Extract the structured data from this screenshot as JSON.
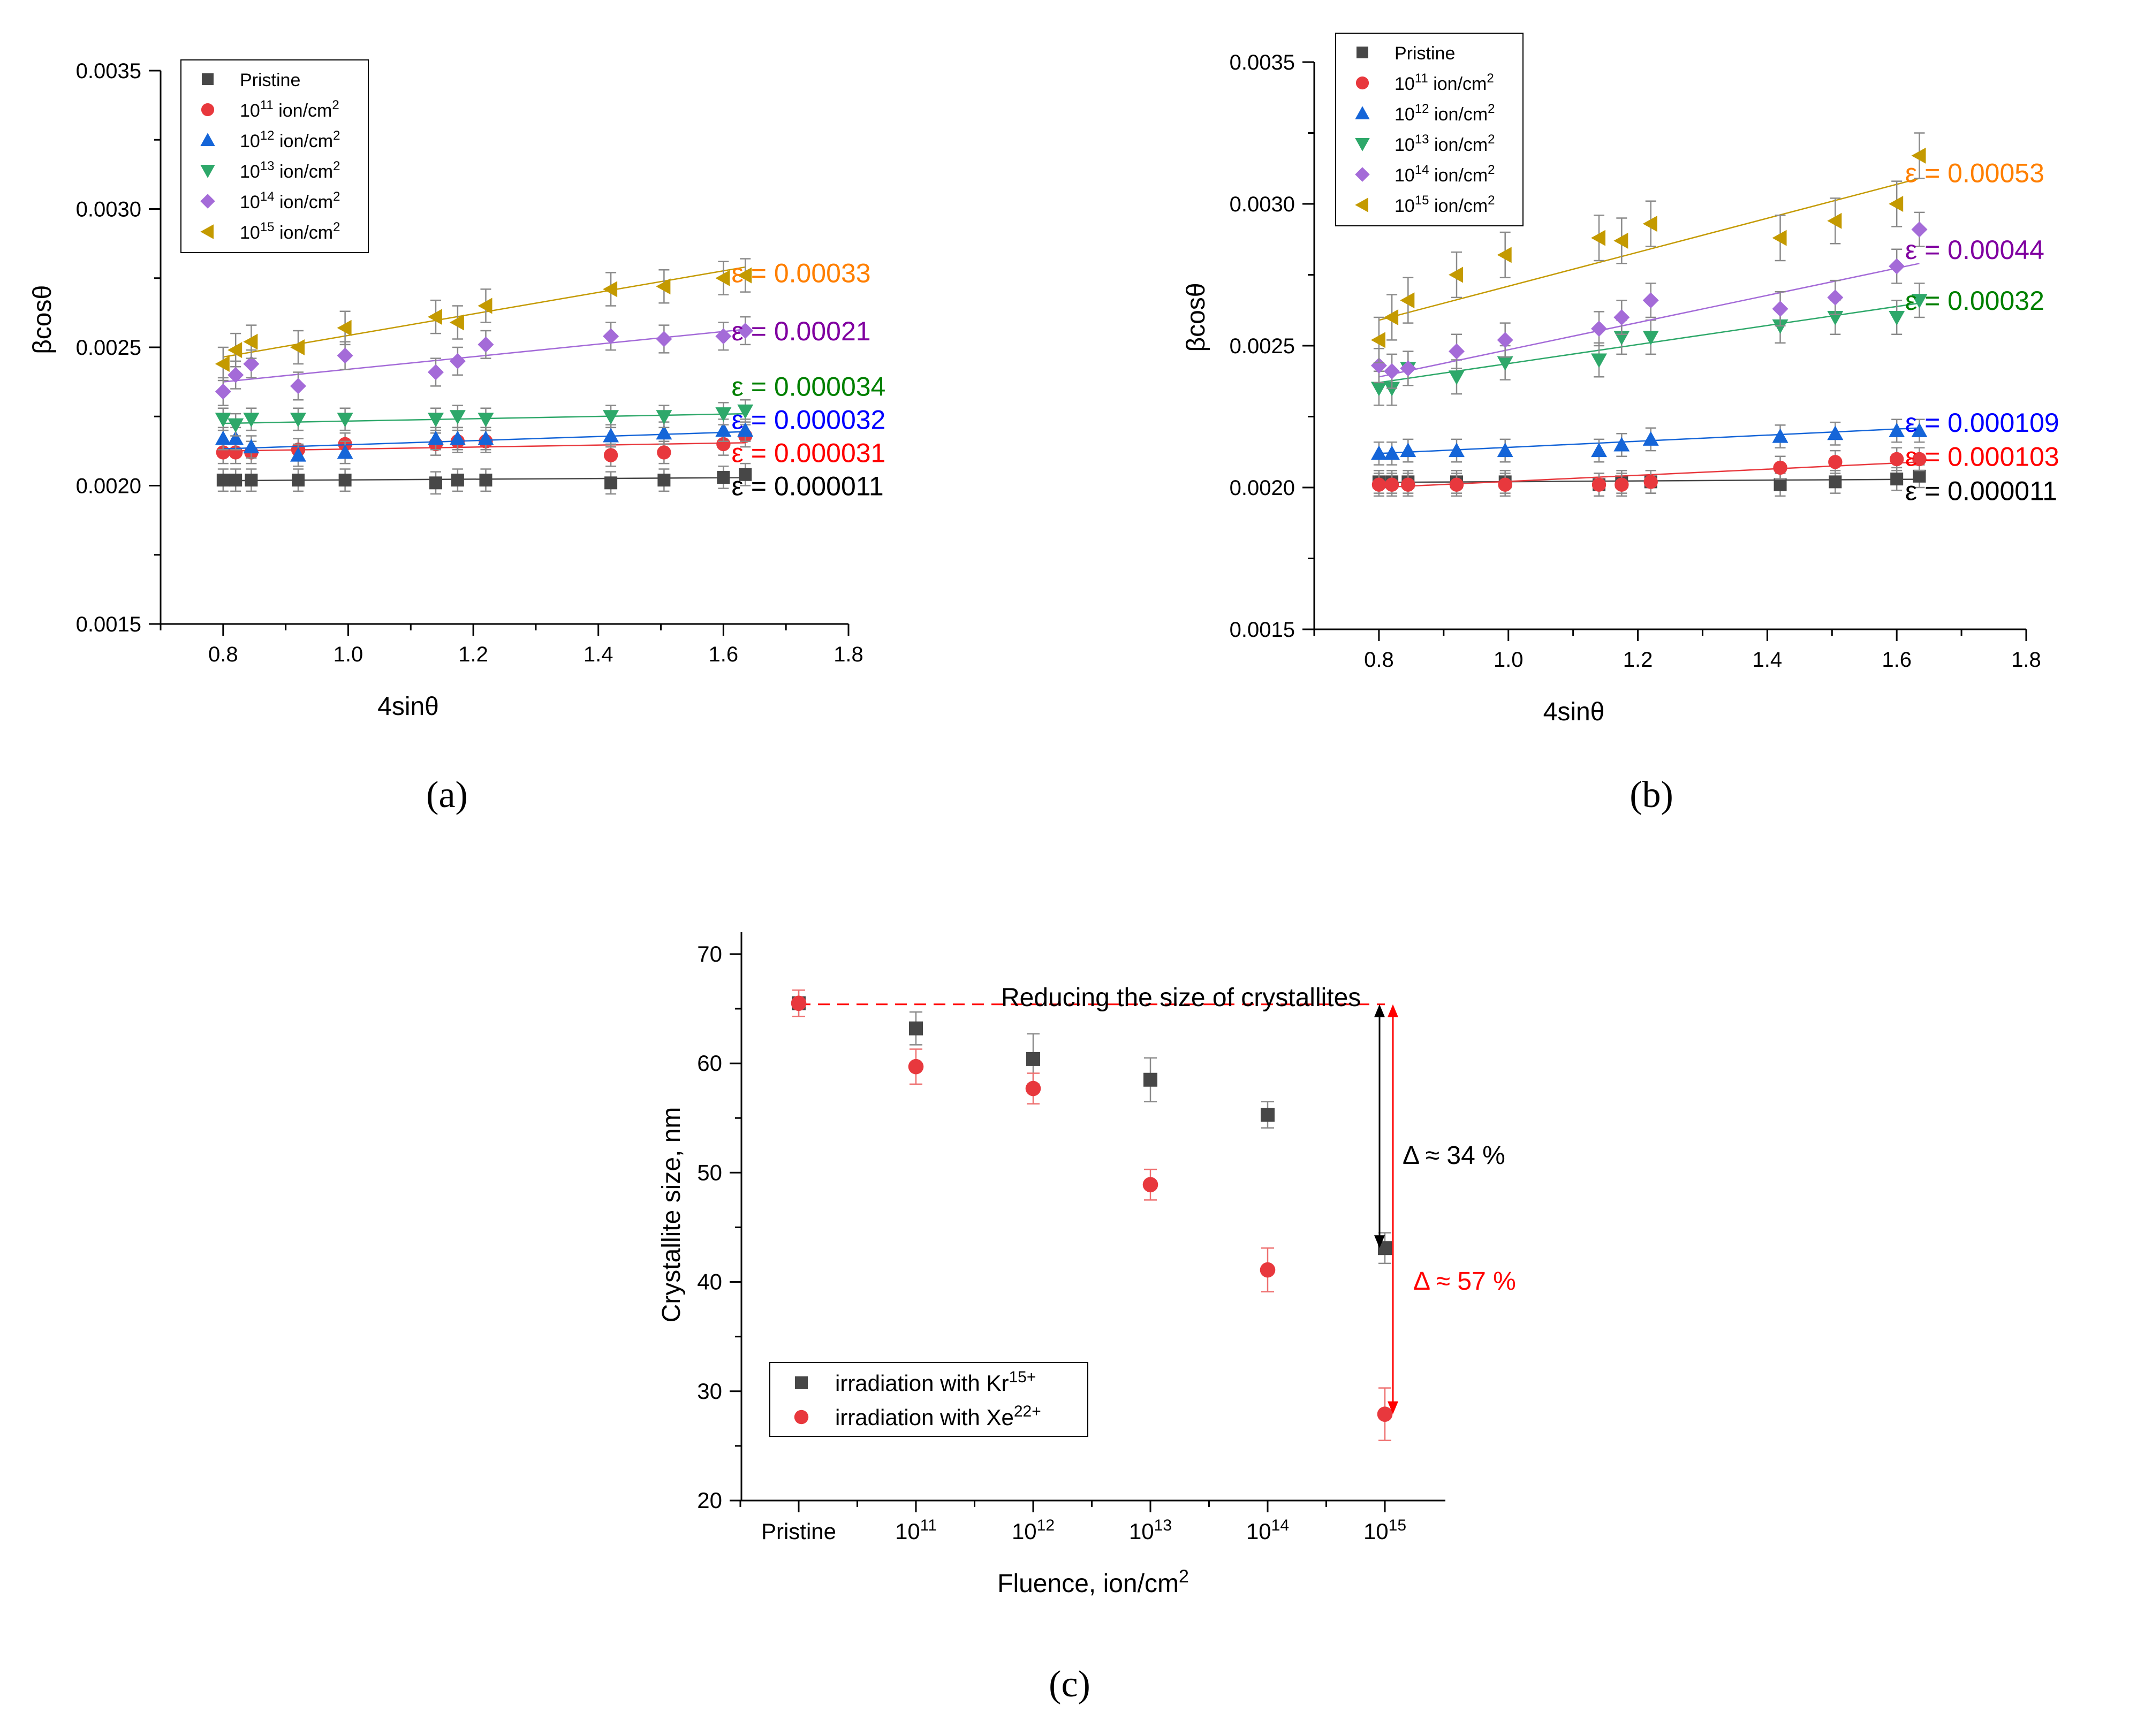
{
  "chart_data": [
    {
      "type": "scatter",
      "panel": "(a)",
      "panel_letter": "a",
      "xlabel": "4sinθ",
      "ylabel": "βcosθ",
      "xlim": [
        0.7,
        1.8
      ],
      "ylim": [
        0.0015,
        0.0035
      ],
      "xticks": [
        0.8,
        1.0,
        1.2,
        1.4,
        1.6,
        1.8
      ],
      "xtick_labels": [
        "0.8",
        "1.0",
        "1.2",
        "1.4",
        "1.6",
        "1.8"
      ],
      "yticks": [
        0.0015,
        0.002,
        0.0025,
        0.003,
        0.0035
      ],
      "ytick_labels": [
        "0.0015",
        "0.0020",
        "0.0025",
        "0.0030",
        "0.0035"
      ],
      "legend_position": "top-left",
      "x": [
        0.8,
        0.82,
        0.845,
        0.92,
        0.995,
        1.14,
        1.175,
        1.22,
        1.42,
        1.505,
        1.6,
        1.635
      ],
      "series": [
        {
          "name": "Pristine",
          "legend_base": "Pristine",
          "legend_exp": "",
          "legend_tail": "",
          "marker": "square",
          "color": "#474747",
          "values": [
            0.00202,
            0.00202,
            0.00202,
            0.00202,
            0.00202,
            0.00201,
            0.00202,
            0.00202,
            0.00201,
            0.00202,
            0.00203,
            0.00204
          ],
          "err": 4e-05,
          "fit": [
            0.002018,
            0.002029
          ],
          "strain_label": "ε = 0.000011",
          "strain_color": "#000000",
          "strain_at": 0.002
        },
        {
          "name": "10^11 ion/cm^2",
          "legend_base": "10",
          "legend_exp": "11",
          "legend_tail": " ion/cm",
          "marker": "circle",
          "color": "#e8383d",
          "values": [
            0.00212,
            0.00212,
            0.00212,
            0.00213,
            0.00215,
            0.00215,
            0.00216,
            0.00216,
            0.00211,
            0.00212,
            0.00215,
            0.00218
          ],
          "err": 4e-05,
          "fit": [
            0.002125,
            0.002155
          ],
          "strain_label": "ε = 0.000031",
          "strain_color": "#ff0000",
          "strain_at": 0.00212
        },
        {
          "name": "10^12 ion/cm^2",
          "legend_base": "10",
          "legend_exp": "12",
          "legend_tail": " ion/cm",
          "marker": "triangle-up",
          "color": "#1565d8",
          "values": [
            0.00217,
            0.00217,
            0.00214,
            0.00211,
            0.00212,
            0.00217,
            0.00217,
            0.00217,
            0.00218,
            0.00219,
            0.0022,
            0.0022
          ],
          "err": 4e-05,
          "fit": [
            0.002133,
            0.002195
          ],
          "strain_label": "ε = 0.000032",
          "strain_color": "#0000ff",
          "strain_at": 0.00224
        },
        {
          "name": "10^13 ion/cm^2",
          "legend_base": "10",
          "legend_exp": "13",
          "legend_tail": " ion/cm",
          "marker": "triangle-down",
          "color": "#2ea86a",
          "values": [
            0.00224,
            0.00222,
            0.00224,
            0.00224,
            0.00224,
            0.00224,
            0.00225,
            0.00224,
            0.00225,
            0.00225,
            0.00226,
            0.00227
          ],
          "err": 4e-05,
          "fit": [
            0.002225,
            0.00226
          ],
          "strain_label": "ε = 0.000034",
          "strain_color": "#008000",
          "strain_at": 0.00236
        },
        {
          "name": "10^14 ion/cm^2",
          "legend_base": "10",
          "legend_exp": "14",
          "legend_tail": " ion/cm",
          "marker": "diamond",
          "color": "#a46bd8",
          "values": [
            0.00234,
            0.0024,
            0.00244,
            0.00236,
            0.00247,
            0.00241,
            0.00245,
            0.00251,
            0.00254,
            0.00253,
            0.00254,
            0.00256
          ],
          "err": 5e-05,
          "fit": [
            0.002375,
            0.002565
          ],
          "strain_label": "ε = 0.00021",
          "strain_color": "#8000a0",
          "strain_at": 0.00256
        },
        {
          "name": "10^15 ion/cm^2",
          "legend_base": "10",
          "legend_exp": "15",
          "legend_tail": " ion/cm",
          "marker": "triangle-left",
          "color": "#c49a00",
          "values": [
            0.00244,
            0.00249,
            0.00252,
            0.0025,
            0.00257,
            0.00261,
            0.00259,
            0.00265,
            0.00271,
            0.00272,
            0.00275,
            0.00276
          ],
          "err": 6e-05,
          "fit": [
            0.002465,
            0.00279
          ],
          "strain_label": "ε = 0.00033",
          "strain_color": "#ff7f00",
          "strain_at": 0.00277
        }
      ]
    },
    {
      "type": "scatter",
      "panel": "(b)",
      "panel_letter": "b",
      "xlabel": "4sinθ",
      "ylabel": "βcosθ",
      "xlim": [
        0.7,
        1.8
      ],
      "ylim": [
        0.0015,
        0.0035
      ],
      "xticks": [
        0.8,
        1.0,
        1.2,
        1.4,
        1.6,
        1.8
      ],
      "xtick_labels": [
        "0.8",
        "1.0",
        "1.2",
        "1.4",
        "1.6",
        "1.8"
      ],
      "yticks": [
        0.0015,
        0.002,
        0.0025,
        0.003,
        0.0035
      ],
      "ytick_labels": [
        "0.0015",
        "0.0020",
        "0.0025",
        "0.0030",
        "0.0035"
      ],
      "legend_position": "top-left",
      "x": [
        0.8,
        0.82,
        0.845,
        0.92,
        0.995,
        1.14,
        1.175,
        1.22,
        1.42,
        1.505,
        1.6,
        1.635
      ],
      "series": [
        {
          "name": "Pristine",
          "legend_base": "Pristine",
          "legend_exp": "",
          "legend_tail": "",
          "marker": "square",
          "color": "#474747",
          "values": [
            0.00202,
            0.00202,
            0.00202,
            0.00202,
            0.00202,
            0.00201,
            0.00202,
            0.00202,
            0.00201,
            0.00202,
            0.00203,
            0.00204
          ],
          "err": 4e-05,
          "fit": [
            0.002018,
            0.002029
          ],
          "strain_label": "ε = 0.000011",
          "strain_color": "#000000",
          "strain_at": 0.00199
        },
        {
          "name": "10^11 ion/cm^2",
          "legend_base": "10",
          "legend_exp": "11",
          "legend_tail": " ion/cm",
          "marker": "circle",
          "color": "#e8383d",
          "values": [
            0.00201,
            0.00201,
            0.00201,
            0.00201,
            0.00201,
            0.00201,
            0.00201,
            0.00202,
            0.00207,
            0.00209,
            0.0021,
            0.0021
          ],
          "err": 4e-05,
          "fit": [
            0.002,
            0.00209
          ],
          "strain_label": "ε = 0.000103",
          "strain_color": "#ff0000",
          "strain_at": 0.00211
        },
        {
          "name": "10^12 ion/cm^2",
          "legend_base": "10",
          "legend_exp": "12",
          "legend_tail": " ion/cm",
          "marker": "triangle-up",
          "color": "#1565d8",
          "values": [
            0.00212,
            0.00212,
            0.00213,
            0.00213,
            0.00213,
            0.00213,
            0.00215,
            0.00217,
            0.00218,
            0.00219,
            0.0022,
            0.0022
          ],
          "err": 4e-05,
          "fit": [
            0.00212,
            0.00221
          ],
          "strain_label": "ε = 0.000109",
          "strain_color": "#0000ff",
          "strain_at": 0.00223
        },
        {
          "name": "10^13 ion/cm^2",
          "legend_base": "10",
          "legend_exp": "13",
          "legend_tail": " ion/cm",
          "marker": "triangle-down",
          "color": "#2ea86a",
          "values": [
            0.00235,
            0.00235,
            0.00242,
            0.00239,
            0.00244,
            0.00245,
            0.00253,
            0.00253,
            0.00257,
            0.0026,
            0.0026,
            0.00266
          ],
          "err": 6e-05,
          "fit": [
            0.00237,
            0.00265
          ],
          "strain_label": "ε = 0.00032",
          "strain_color": "#008000",
          "strain_at": 0.00266
        },
        {
          "name": "10^14 ion/cm^2",
          "legend_base": "10",
          "legend_exp": "14",
          "legend_tail": " ion/cm",
          "marker": "diamond",
          "color": "#a46bd8",
          "values": [
            0.00243,
            0.00241,
            0.00242,
            0.00248,
            0.00252,
            0.00256,
            0.0026,
            0.00266,
            0.00263,
            0.00267,
            0.00278,
            0.00291
          ],
          "err": 6e-05,
          "fit": [
            0.00239,
            0.00279
          ],
          "strain_label": "ε = 0.00044",
          "strain_color": "#8000a0",
          "strain_at": 0.00284
        },
        {
          "name": "10^15 ion/cm^2",
          "legend_base": "10",
          "legend_exp": "15",
          "legend_tail": " ion/cm",
          "marker": "triangle-left",
          "color": "#c49a00",
          "values": [
            0.00252,
            0.0026,
            0.00266,
            0.00275,
            0.00282,
            0.00288,
            0.00287,
            0.00293,
            0.00288,
            0.00294,
            0.003,
            0.00317
          ],
          "err": 8e-05,
          "fit": [
            0.00259,
            0.00309
          ],
          "strain_label": "ε = 0.00053",
          "strain_color": "#ff7f00",
          "strain_at": 0.00311
        }
      ]
    },
    {
      "type": "scatter",
      "panel": "(c)",
      "panel_letter": "c",
      "xlabel_base": "Fluence, ion/cm",
      "xlabel_exp": "2",
      "ylabel": "Crystallite size, nm",
      "categories": [
        "Pristine",
        "10^11",
        "10^12",
        "10^13",
        "10^14",
        "10^15"
      ],
      "category_labels": [
        {
          "base": "Pristine",
          "exp": ""
        },
        {
          "base": "10",
          "exp": "11"
        },
        {
          "base": "10",
          "exp": "12"
        },
        {
          "base": "10",
          "exp": "13"
        },
        {
          "base": "10",
          "exp": "14"
        },
        {
          "base": "10",
          "exp": "15"
        }
      ],
      "ylim": [
        20,
        72
      ],
      "yticks": [
        20,
        30,
        40,
        50,
        60,
        70
      ],
      "ytick_labels": [
        "20",
        "30",
        "40",
        "50",
        "60",
        "70"
      ],
      "legend_position": "bottom-left",
      "series": [
        {
          "name": "irradiation with Kr15+",
          "legend_base": "irradiation with Kr",
          "legend_exp": "15+",
          "marker": "square",
          "color": "#474747",
          "values": [
            65.5,
            63.2,
            60.4,
            58.5,
            55.3,
            43.1
          ],
          "err": [
            1.2,
            1.5,
            2.3,
            2.0,
            1.2,
            1.4
          ]
        },
        {
          "name": "irradiation with Xe22+",
          "legend_base": "irradiation with Xe",
          "legend_exp": "22+",
          "marker": "circle",
          "color": "#e8383d",
          "values": [
            65.5,
            59.7,
            57.7,
            48.9,
            41.1,
            27.9
          ],
          "err": [
            1.2,
            1.6,
            1.4,
            1.4,
            2.0,
            2.4
          ]
        }
      ],
      "reference_line": {
        "value": 65.4,
        "label": "Reducing the size of crystallites",
        "color": "#ff0000"
      },
      "annotations": [
        {
          "label": "Δ ≈ 34 %",
          "color": "#000000",
          "from": 65.4,
          "to": 43.1
        },
        {
          "label": "Δ ≈ 57 %",
          "color": "#ff0000",
          "from": 65.4,
          "to": 27.9
        }
      ]
    }
  ]
}
